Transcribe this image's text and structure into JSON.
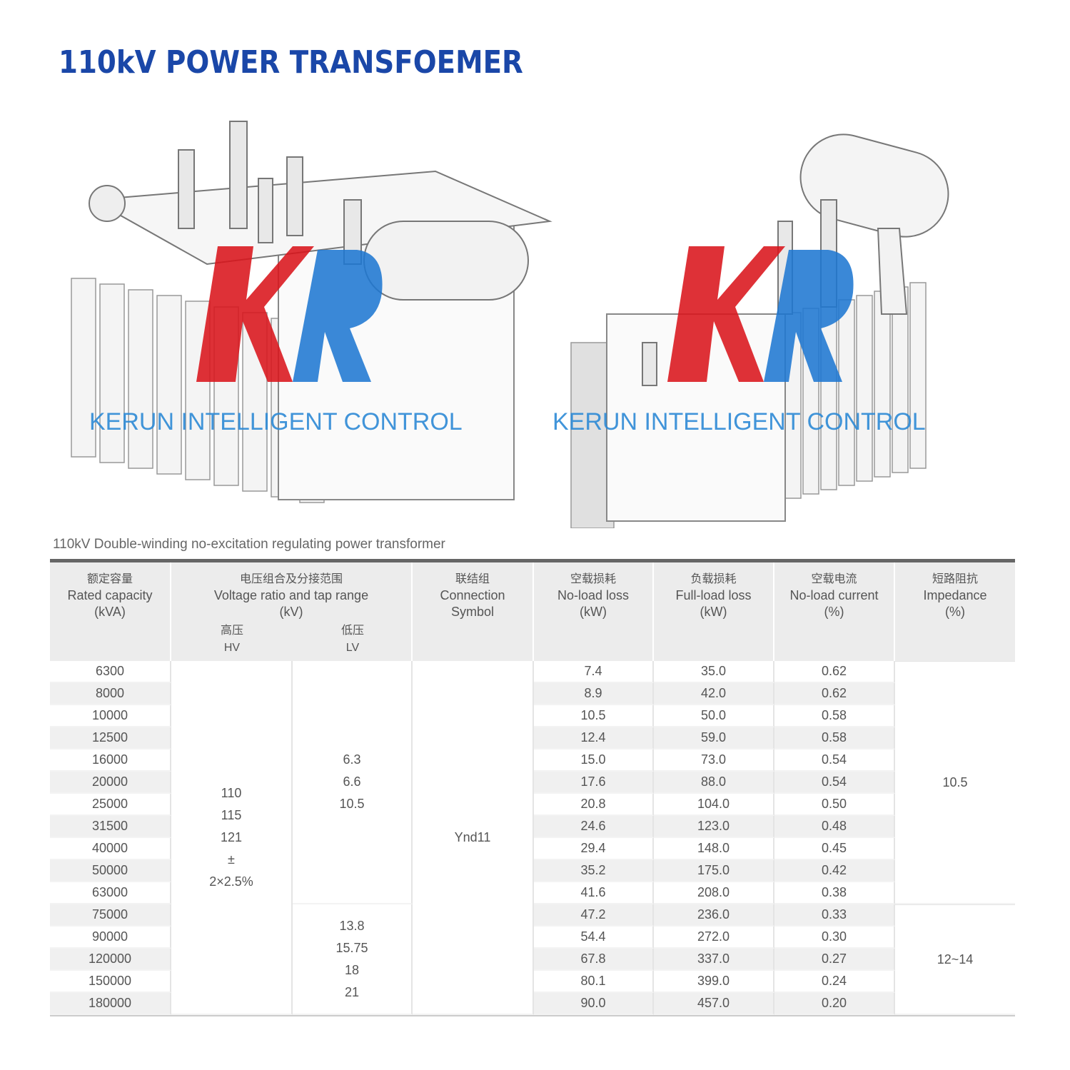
{
  "title": "110kV POWER TRANSFOEMER",
  "watermark": {
    "logo": "KR",
    "text": "KERUN INTELLIGENT CONTROL"
  },
  "caption": "110kV Double-winding no-excitation regulating power transformer",
  "colors": {
    "title": "#1a47a8",
    "logo_red": "#d9141b",
    "logo_blue": "#1f78d1"
  },
  "table": {
    "headers": {
      "capacity": {
        "zh": "额定容量",
        "en": "Rated capacity",
        "unit": "(kVA)"
      },
      "voltage": {
        "zh": "电压组合及分接范围",
        "en": "Voltage ratio and tap range",
        "unit": "(kV)",
        "hv_zh": "高压",
        "hv": "HV",
        "lv_zh": "低压",
        "lv": "LV"
      },
      "connection": {
        "zh": "联结组",
        "en": "Connection",
        "unit": "Symbol"
      },
      "noload_loss": {
        "zh": "空载损耗",
        "en": "No-load loss",
        "unit": "(kW)"
      },
      "fullload_loss": {
        "zh": "负载损耗",
        "en": "Full-load loss",
        "unit": "(kW)"
      },
      "noload_current": {
        "zh": "空载电流",
        "en": "No-load current",
        "unit": "(%)"
      },
      "impedance": {
        "zh": "短路阻抗",
        "en": "Impedance",
        "unit": "(%)"
      }
    },
    "hv": [
      "110",
      "115",
      "121",
      "±",
      "2×2.5%"
    ],
    "lv_groups": [
      [
        "6.3",
        "6.6",
        "10.5"
      ],
      [
        "13.8",
        "15.75",
        "18",
        "21"
      ]
    ],
    "connection": "Ynd11",
    "impedance_groups": [
      "10.5",
      "12~14"
    ],
    "rows": [
      {
        "capacity": "6300",
        "noload_loss": "7.4",
        "fullload_loss": "35.0",
        "noload_current": "0.62"
      },
      {
        "capacity": "8000",
        "noload_loss": "8.9",
        "fullload_loss": "42.0",
        "noload_current": "0.62"
      },
      {
        "capacity": "10000",
        "noload_loss": "10.5",
        "fullload_loss": "50.0",
        "noload_current": "0.58"
      },
      {
        "capacity": "12500",
        "noload_loss": "12.4",
        "fullload_loss": "59.0",
        "noload_current": "0.58"
      },
      {
        "capacity": "16000",
        "noload_loss": "15.0",
        "fullload_loss": "73.0",
        "noload_current": "0.54"
      },
      {
        "capacity": "20000",
        "noload_loss": "17.6",
        "fullload_loss": "88.0",
        "noload_current": "0.54"
      },
      {
        "capacity": "25000",
        "noload_loss": "20.8",
        "fullload_loss": "104.0",
        "noload_current": "0.50"
      },
      {
        "capacity": "31500",
        "noload_loss": "24.6",
        "fullload_loss": "123.0",
        "noload_current": "0.48"
      },
      {
        "capacity": "40000",
        "noload_loss": "29.4",
        "fullload_loss": "148.0",
        "noload_current": "0.45"
      },
      {
        "capacity": "50000",
        "noload_loss": "35.2",
        "fullload_loss": "175.0",
        "noload_current": "0.42"
      },
      {
        "capacity": "63000",
        "noload_loss": "41.6",
        "fullload_loss": "208.0",
        "noload_current": "0.38"
      },
      {
        "capacity": "75000",
        "noload_loss": "47.2",
        "fullload_loss": "236.0",
        "noload_current": "0.33"
      },
      {
        "capacity": "90000",
        "noload_loss": "54.4",
        "fullload_loss": "272.0",
        "noload_current": "0.30"
      },
      {
        "capacity": "120000",
        "noload_loss": "67.8",
        "fullload_loss": "337.0",
        "noload_current": "0.27"
      },
      {
        "capacity": "150000",
        "noload_loss": "80.1",
        "fullload_loss": "399.0",
        "noload_current": "0.24"
      },
      {
        "capacity": "180000",
        "noload_loss": "90.0",
        "fullload_loss": "457.0",
        "noload_current": "0.20"
      }
    ]
  }
}
